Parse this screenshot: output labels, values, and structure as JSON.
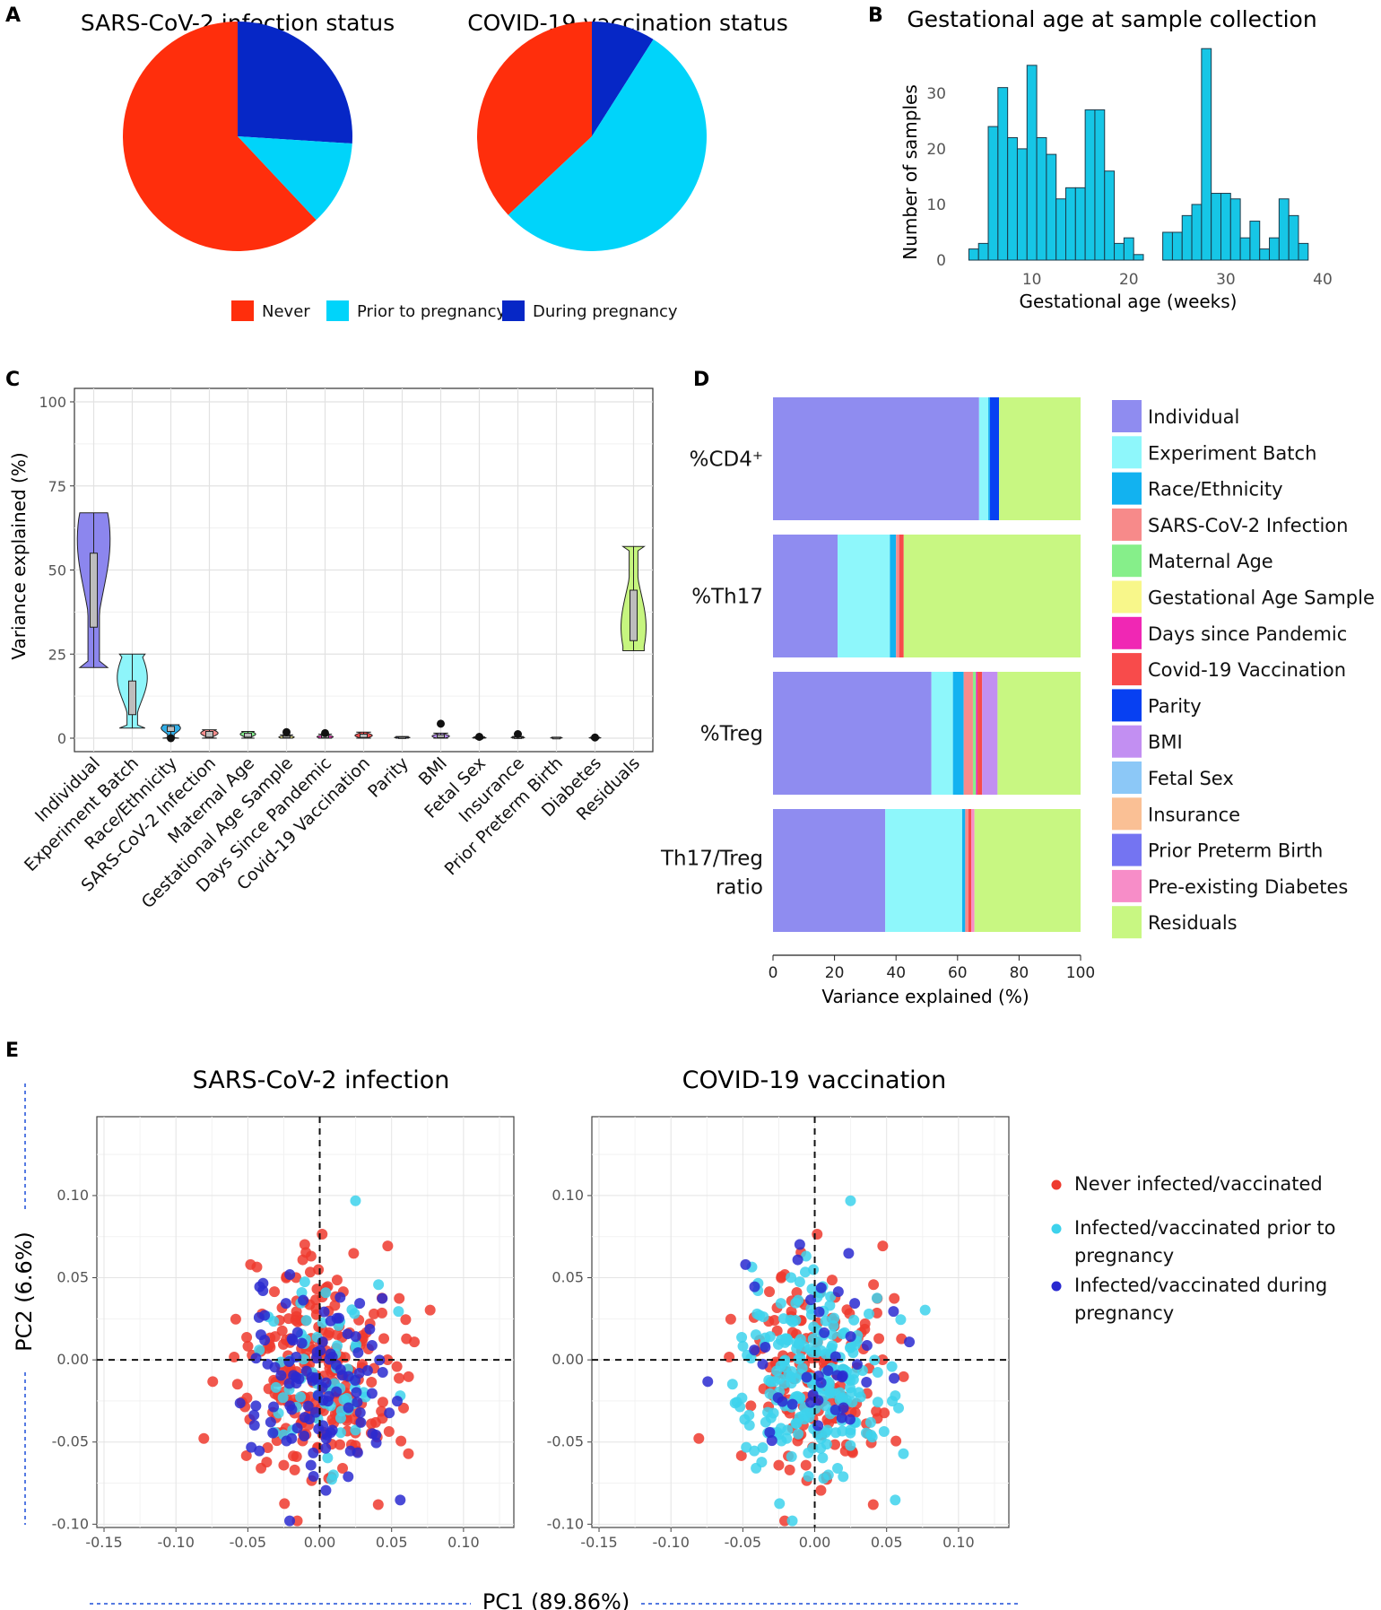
{
  "panels": {
    "a": "A",
    "b": "B",
    "c": "C",
    "d": "D",
    "e": "E"
  },
  "chart_data": [
    {
      "id": "A1",
      "type": "pie",
      "title": "SARS-CoV-2 infection status",
      "labels": [
        "Never",
        "Prior to pregnancy",
        "During pregnancy"
      ],
      "values": [
        62,
        12,
        26
      ],
      "colors": [
        "#ff2e0c",
        "#00d4fa",
        "#0627c6"
      ]
    },
    {
      "id": "A2",
      "type": "pie",
      "title": "COVID-19 vaccination status",
      "labels": [
        "Never",
        "Prior to pregnancy",
        "During pregnancy"
      ],
      "values": [
        37,
        54,
        9
      ],
      "colors": [
        "#ff2e0c",
        "#00d4fa",
        "#0627c6"
      ]
    },
    {
      "id": "A-legend",
      "legend": [
        {
          "label": "Never",
          "color": "#ff2e0c"
        },
        {
          "label": "Prior to pregnancy",
          "color": "#00d4fa"
        },
        {
          "label": "During pregnancy",
          "color": "#0627c6"
        }
      ]
    },
    {
      "id": "B",
      "type": "bar",
      "title": "Gestational age at sample collection",
      "xlabel": "Gestational age (weeks)",
      "ylabel": "Number of samples",
      "xlim": [
        3,
        40
      ],
      "ylim": [
        0,
        39
      ],
      "xticks": [
        "10",
        "20",
        "30",
        "40"
      ],
      "yticks": [
        "0",
        "10",
        "20",
        "30"
      ],
      "binwidth": 1,
      "color": "#16c6e6",
      "bins": [
        {
          "x": 4,
          "v": 2
        },
        {
          "x": 5,
          "v": 3
        },
        {
          "x": 6,
          "v": 24
        },
        {
          "x": 7,
          "v": 31
        },
        {
          "x": 8,
          "v": 22
        },
        {
          "x": 9,
          "v": 20
        },
        {
          "x": 10,
          "v": 35
        },
        {
          "x": 11,
          "v": 22
        },
        {
          "x": 12,
          "v": 19
        },
        {
          "x": 13,
          "v": 11
        },
        {
          "x": 14,
          "v": 13
        },
        {
          "x": 15,
          "v": 13
        },
        {
          "x": 16,
          "v": 27
        },
        {
          "x": 17,
          "v": 27
        },
        {
          "x": 18,
          "v": 16
        },
        {
          "x": 19,
          "v": 3
        },
        {
          "x": 20,
          "v": 4
        },
        {
          "x": 21,
          "v": 1
        },
        {
          "x": 24,
          "v": 5
        },
        {
          "x": 25,
          "v": 5
        },
        {
          "x": 26,
          "v": 8
        },
        {
          "x": 27,
          "v": 10
        },
        {
          "x": 28,
          "v": 38
        },
        {
          "x": 29,
          "v": 12
        },
        {
          "x": 30,
          "v": 12
        },
        {
          "x": 31,
          "v": 11
        },
        {
          "x": 32,
          "v": 4
        },
        {
          "x": 33,
          "v": 7
        },
        {
          "x": 34,
          "v": 2
        },
        {
          "x": 35,
          "v": 4
        },
        {
          "x": 36,
          "v": 11
        },
        {
          "x": 37,
          "v": 8
        },
        {
          "x": 38,
          "v": 3
        }
      ]
    },
    {
      "id": "C",
      "type": "violin",
      "ylabel": "Variance explained (%)",
      "ylim": [
        -4,
        104
      ],
      "yticks": [
        "0",
        "25",
        "50",
        "75",
        "100"
      ],
      "categories": [
        {
          "label": "Individual",
          "color": "#8c86ee",
          "min": 21,
          "max": 67,
          "q1": 33,
          "med": 44,
          "q3": 55,
          "peak": 59,
          "width": 0.85
        },
        {
          "label": "Experiment Batch",
          "color": "#8ef5fa",
          "min": 3,
          "max": 25,
          "q1": 7,
          "med": 11,
          "q3": 17,
          "peak": 18,
          "width": 0.78
        },
        {
          "label": "Race/Ethnicity",
          "color": "#30aee8",
          "min": 0,
          "max": 4,
          "q1": 2,
          "med": 3,
          "q3": 3.5,
          "peak": 3,
          "width": 0.5,
          "outlier": 0
        },
        {
          "label": "SARS-CoV-2 Infection",
          "color": "#f58d8d",
          "min": 0,
          "max": 2.5,
          "q1": 0.3,
          "med": 1,
          "q3": 2,
          "peak": 1.5,
          "width": 0.45
        },
        {
          "label": "Maternal Age",
          "color": "#84ef8e",
          "min": 0,
          "max": 2,
          "q1": 0.3,
          "med": 1,
          "q3": 1.5,
          "peak": 1.2,
          "width": 0.4
        },
        {
          "label": "Gestational Age Sample",
          "color": "#f8f48a",
          "min": 0,
          "max": 1,
          "q1": 0.1,
          "med": 0.3,
          "q3": 0.6,
          "peak": 0.3,
          "width": 0.4,
          "outlier": 1.8
        },
        {
          "label": "Days Since Pandemic",
          "color": "#f03fbd",
          "min": 0,
          "max": 1.2,
          "q1": 0.1,
          "med": 0.4,
          "q3": 0.8,
          "peak": 0.4,
          "width": 0.42,
          "outlier": 1.5
        },
        {
          "label": "Covid-19 Vaccination",
          "color": "#f25050",
          "min": 0,
          "max": 1.8,
          "q1": 0.2,
          "med": 0.6,
          "q3": 1.2,
          "peak": 0.8,
          "width": 0.45
        },
        {
          "label": "Parity",
          "color": "#3b63e6",
          "min": 0,
          "max": 0.5,
          "q1": 0.05,
          "med": 0.2,
          "q3": 0.3,
          "peak": 0.2,
          "width": 0.4
        },
        {
          "label": "BMI",
          "color": "#b88cf2",
          "min": 0,
          "max": 1.5,
          "q1": 0.2,
          "med": 0.5,
          "q3": 1,
          "peak": 0.6,
          "width": 0.45,
          "outlier": 4.3
        },
        {
          "label": "Fetal Sex",
          "color": "#8ec4f2",
          "min": 0,
          "max": 0.4,
          "q1": 0.05,
          "med": 0.1,
          "q3": 0.2,
          "peak": 0.1,
          "width": 0.35,
          "outlier": 0.4
        },
        {
          "label": "Insurance",
          "color": "#f7c196",
          "min": 0,
          "max": 0.5,
          "q1": 0.05,
          "med": 0.2,
          "q3": 0.3,
          "peak": 0.2,
          "width": 0.35,
          "outlier": 1.2
        },
        {
          "label": "Prior Preterm Birth",
          "color": "#6f6ef2",
          "min": 0,
          "max": 0.3,
          "q1": 0.05,
          "med": 0.1,
          "q3": 0.2,
          "peak": 0.1,
          "width": 0.3
        },
        {
          "label": "Diabetes",
          "color": "#f587c6",
          "min": 0,
          "max": 0.3,
          "q1": 0.05,
          "med": 0.1,
          "q3": 0.2,
          "peak": 0.1,
          "width": 0.3,
          "outlier": 0.2
        },
        {
          "label": "Residuals",
          "color": "#c6f57f",
          "min": 26,
          "max": 57,
          "q1": 29,
          "med": 36,
          "q3": 44,
          "peak": 33,
          "width": 0.65
        }
      ]
    },
    {
      "id": "D",
      "type": "bar",
      "orientation": "horizontal",
      "stacked": true,
      "xlabel": "Variance explained (%)",
      "xlim": [
        0,
        100
      ],
      "xticks": [
        "0",
        "20",
        "40",
        "60",
        "80",
        "100"
      ],
      "components": [
        {
          "name": "Individual",
          "color": "#8f8cf0"
        },
        {
          "name": "Experiment Batch",
          "color": "#8ef7fb"
        },
        {
          "name": "Race/Ethnicity",
          "color": "#12b2f0"
        },
        {
          "name": "SARS-CoV-2 Infection",
          "color": "#f78a8a"
        },
        {
          "name": "Maternal Age",
          "color": "#86ef8a"
        },
        {
          "name": "Gestational Age Sample",
          "color": "#f8f78a"
        },
        {
          "name": "Days since Pandemic",
          "color": "#f027b4"
        },
        {
          "name": "Covid-19 Vaccination",
          "color": "#f84b4b"
        },
        {
          "name": "Parity",
          "color": "#0740f2"
        },
        {
          "name": "BMI",
          "color": "#c28ff2"
        },
        {
          "name": "Fetal Sex",
          "color": "#8cc8f7"
        },
        {
          "name": "Insurance",
          "color": "#fac095"
        },
        {
          "name": "Prior Preterm Birth",
          "color": "#7474f2"
        },
        {
          "name": "Pre-existing Diabetes",
          "color": "#f78dc8"
        },
        {
          "name": "Residuals",
          "color": "#c8f782"
        }
      ],
      "rows": [
        {
          "label": [
            "%CD4⁺"
          ],
          "values": [
            67,
            3,
            0.5,
            0,
            0,
            0,
            0,
            0,
            3,
            0,
            0,
            0,
            0,
            0,
            26.5
          ]
        },
        {
          "label": [
            "%Th17"
          ],
          "values": [
            21,
            17,
            2,
            1,
            0,
            0,
            0,
            1.5,
            0,
            0,
            0,
            0,
            0,
            0,
            57.5
          ]
        },
        {
          "label": [
            "%Treg"
          ],
          "values": [
            51.5,
            7,
            3.5,
            3,
            1,
            0,
            0.5,
            1.5,
            0,
            5,
            0,
            0,
            0,
            0,
            27
          ]
        },
        {
          "label": [
            "Th17/Treg",
            "ratio"
          ],
          "values": [
            36.5,
            25,
            1,
            1,
            0,
            0,
            0,
            1,
            0,
            0,
            0,
            0,
            0,
            1,
            34.5
          ]
        }
      ]
    },
    {
      "id": "E1",
      "type": "scatter",
      "title": "SARS-CoV-2 infection",
      "xlabel": "PC1 (89.86%)",
      "ylabel": "PC2 (6.6%)",
      "xlim": [
        -0.155,
        0.135
      ],
      "ylim": [
        -0.102,
        0.148
      ],
      "xticks": [
        "-0.15",
        "-0.10",
        "-0.05",
        "0.00",
        "0.05",
        "0.10"
      ],
      "yticks": [
        "-0.10",
        "-0.05",
        "0.00",
        "0.05",
        "0.10"
      ],
      "series": [
        {
          "name": "Never infected/vaccinated",
          "color": "#ee3a2e",
          "points": []
        },
        {
          "name": "Infected/vaccinated prior to pregnancy",
          "color": "#3dd2ec",
          "points": []
        },
        {
          "name": "Infected/vaccinated during pregnancy",
          "color": "#2a2ad0",
          "points": []
        }
      ]
    },
    {
      "id": "E2",
      "type": "scatter",
      "title": "COVID-19 vaccination",
      "xlim": [
        -0.155,
        0.135
      ],
      "ylim": [
        -0.102,
        0.148
      ],
      "xticks": [
        "-0.15",
        "-0.10",
        "-0.05",
        "0.00",
        "0.05",
        "0.10"
      ],
      "yticks": [
        "-0.10",
        "-0.05",
        "0.00",
        "0.05",
        "0.10"
      ],
      "series": [
        {
          "name": "Never infected/vaccinated",
          "color": "#ee3a2e",
          "points": []
        },
        {
          "name": "Infected/vaccinated prior to pregnancy",
          "color": "#3dd2ec",
          "points": []
        },
        {
          "name": "Infected/vaccinated during pregnancy",
          "color": "#2a2ad0",
          "points": []
        }
      ]
    }
  ],
  "e_legend": [
    {
      "lines": [
        "Never infected/vaccinated"
      ],
      "color": "#ee3a2e"
    },
    {
      "lines": [
        "Infected/vaccinated prior to",
        "pregnancy"
      ],
      "color": "#3dd2ec"
    },
    {
      "lines": [
        "Infected/vaccinated during",
        "pregnancy"
      ],
      "color": "#2a2ad0"
    }
  ]
}
